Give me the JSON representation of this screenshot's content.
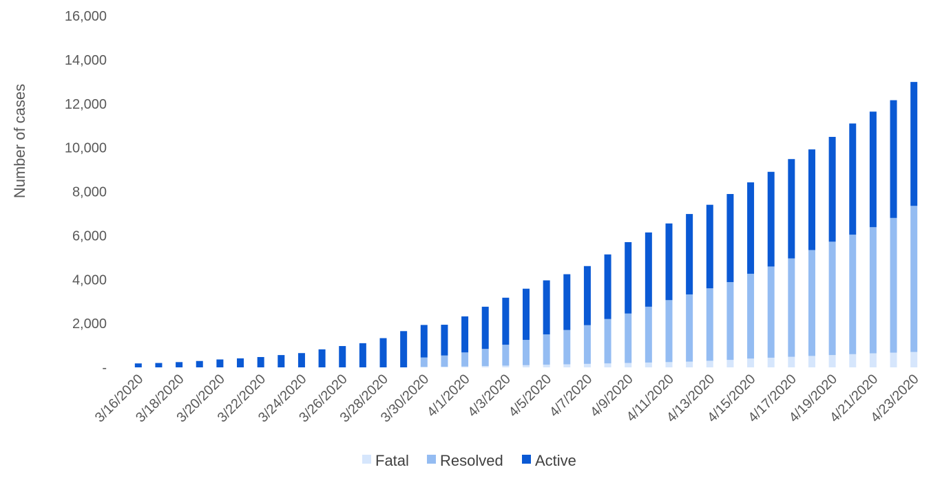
{
  "chart_data": {
    "type": "bar",
    "stacked": true,
    "ylabel": "Number of cases",
    "ylim": [
      0,
      16000
    ],
    "yticks": [
      "-",
      "2,000",
      "4,000",
      "6,000",
      "8,000",
      "10,000",
      "12,000",
      "14,000",
      "16,000"
    ],
    "ytick_values": [
      0,
      2000,
      4000,
      6000,
      8000,
      10000,
      12000,
      14000,
      16000
    ],
    "x_tick_labels": [
      "3/16/2020",
      "3/18/2020",
      "3/20/2020",
      "3/22/2020",
      "3/24/2020",
      "3/26/2020",
      "3/28/2020",
      "3/30/2020",
      "4/1/2020",
      "4/3/2020",
      "4/5/2020",
      "4/7/2020",
      "4/9/2020",
      "4/11/2020",
      "4/13/2020",
      "4/15/2020",
      "4/17/2020",
      "4/19/2020",
      "4/21/2020",
      "4/23/2020"
    ],
    "categories": [
      "3/16/2020",
      "3/17/2020",
      "3/18/2020",
      "3/19/2020",
      "3/20/2020",
      "3/21/2020",
      "3/22/2020",
      "3/23/2020",
      "3/24/2020",
      "3/25/2020",
      "3/26/2020",
      "3/27/2020",
      "3/28/2020",
      "3/29/2020",
      "3/30/2020",
      "3/31/2020",
      "4/1/2020",
      "4/2/2020",
      "4/3/2020",
      "4/4/2020",
      "4/5/2020",
      "4/6/2020",
      "4/7/2020",
      "4/8/2020",
      "4/9/2020",
      "4/10/2020",
      "4/11/2020",
      "4/12/2020",
      "4/13/2020",
      "4/14/2020",
      "4/15/2020",
      "4/16/2020",
      "4/17/2020",
      "4/18/2020",
      "4/19/2020",
      "4/20/2020",
      "4/21/2020",
      "4/22/2020",
      "4/23/2020"
    ],
    "series": [
      {
        "name": "Fatal",
        "color": "#d6e6fc",
        "values": [
          0,
          0,
          0,
          0,
          0,
          0,
          0,
          0,
          0,
          0,
          0,
          0,
          0,
          0,
          20,
          30,
          40,
          60,
          80,
          100,
          120,
          140,
          160,
          180,
          200,
          220,
          240,
          260,
          300,
          340,
          400,
          440,
          480,
          520,
          560,
          600,
          640,
          670,
          700
        ]
      },
      {
        "name": "Resolved",
        "color": "#94bcf2",
        "values": [
          0,
          0,
          0,
          0,
          0,
          0,
          0,
          0,
          0,
          0,
          0,
          0,
          0,
          0,
          430,
          510,
          640,
          780,
          950,
          1150,
          1380,
          1560,
          1760,
          2020,
          2250,
          2540,
          2820,
          3060,
          3300,
          3540,
          3860,
          4150,
          4480,
          4820,
          5160,
          5440,
          5740,
          6130,
          6650
        ]
      },
      {
        "name": "Active",
        "color": "#0a59d4",
        "values": [
          180,
          200,
          240,
          290,
          360,
          410,
          470,
          560,
          650,
          820,
          970,
          1100,
          1330,
          1650,
          1480,
          1400,
          1640,
          1920,
          2140,
          2330,
          2460,
          2540,
          2690,
          2940,
          3250,
          3380,
          3490,
          3660,
          3800,
          4010,
          4160,
          4310,
          4520,
          4580,
          4770,
          5060,
          5260,
          5360,
          5640
        ]
      }
    ],
    "legend": {
      "position": "bottom",
      "entries": [
        "Fatal",
        "Resolved",
        "Active"
      ]
    },
    "grid": false
  }
}
